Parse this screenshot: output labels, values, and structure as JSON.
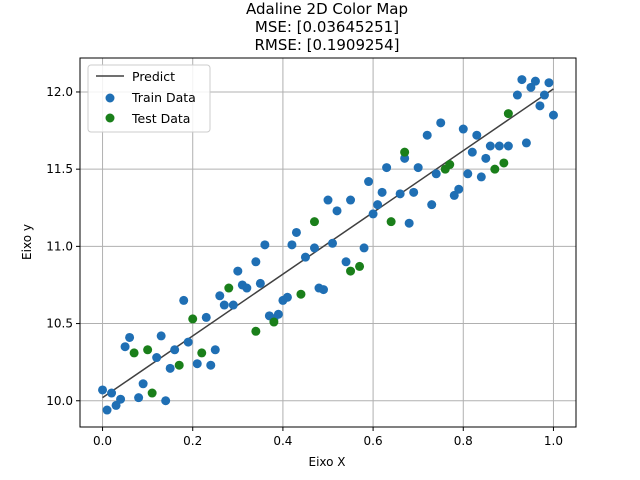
{
  "chart_data": {
    "type": "scatter",
    "title_lines": [
      "Adaline 2D Color Map",
      "MSE: [0.03645251]",
      "RMSE: [0.1909254]"
    ],
    "xlabel": "Eixo X",
    "ylabel": "Eixo y",
    "xlim": [
      -0.05,
      1.05
    ],
    "ylim": [
      9.83,
      12.22
    ],
    "x_ticks": [
      0.0,
      0.2,
      0.4,
      0.6,
      0.8,
      1.0
    ],
    "x_tick_labels": [
      "0.0",
      "0.2",
      "0.4",
      "0.6",
      "0.8",
      "1.0"
    ],
    "y_ticks": [
      10.0,
      10.5,
      11.0,
      11.5,
      12.0
    ],
    "y_tick_labels": [
      "10.0",
      "10.5",
      "11.0",
      "11.5",
      "12.0"
    ],
    "grid": true,
    "legend_position": "top-left",
    "series": [
      {
        "name": "Predict",
        "kind": "line",
        "color": "#404040",
        "points": [
          [
            0.0,
            10.02
          ],
          [
            1.0,
            12.02
          ]
        ]
      },
      {
        "name": "Train Data",
        "kind": "scatter",
        "color": "#1f6fb4",
        "points": [
          [
            0.0,
            10.07
          ],
          [
            0.01,
            9.94
          ],
          [
            0.02,
            10.05
          ],
          [
            0.03,
            9.97
          ],
          [
            0.04,
            10.01
          ],
          [
            0.05,
            10.35
          ],
          [
            0.06,
            10.41
          ],
          [
            0.08,
            10.02
          ],
          [
            0.09,
            10.11
          ],
          [
            0.12,
            10.28
          ],
          [
            0.13,
            10.42
          ],
          [
            0.14,
            10.0
          ],
          [
            0.15,
            10.21
          ],
          [
            0.16,
            10.33
          ],
          [
            0.18,
            10.65
          ],
          [
            0.19,
            10.38
          ],
          [
            0.21,
            10.24
          ],
          [
            0.23,
            10.54
          ],
          [
            0.24,
            10.23
          ],
          [
            0.25,
            10.33
          ],
          [
            0.26,
            10.68
          ],
          [
            0.27,
            10.62
          ],
          [
            0.29,
            10.62
          ],
          [
            0.3,
            10.84
          ],
          [
            0.31,
            10.75
          ],
          [
            0.32,
            10.73
          ],
          [
            0.34,
            10.9
          ],
          [
            0.35,
            10.76
          ],
          [
            0.36,
            11.01
          ],
          [
            0.37,
            10.55
          ],
          [
            0.38,
            10.53
          ],
          [
            0.39,
            10.56
          ],
          [
            0.4,
            10.65
          ],
          [
            0.41,
            10.67
          ],
          [
            0.42,
            11.01
          ],
          [
            0.43,
            11.09
          ],
          [
            0.45,
            10.93
          ],
          [
            0.47,
            10.99
          ],
          [
            0.48,
            10.73
          ],
          [
            0.49,
            10.72
          ],
          [
            0.5,
            11.3
          ],
          [
            0.51,
            11.02
          ],
          [
            0.52,
            11.23
          ],
          [
            0.54,
            10.9
          ],
          [
            0.55,
            11.3
          ],
          [
            0.58,
            10.99
          ],
          [
            0.59,
            11.42
          ],
          [
            0.6,
            11.21
          ],
          [
            0.61,
            11.27
          ],
          [
            0.62,
            11.35
          ],
          [
            0.63,
            11.51
          ],
          [
            0.66,
            11.34
          ],
          [
            0.67,
            11.57
          ],
          [
            0.68,
            11.15
          ],
          [
            0.69,
            11.35
          ],
          [
            0.7,
            11.51
          ],
          [
            0.72,
            11.72
          ],
          [
            0.73,
            11.27
          ],
          [
            0.74,
            11.47
          ],
          [
            0.75,
            11.8
          ],
          [
            0.78,
            11.33
          ],
          [
            0.79,
            11.37
          ],
          [
            0.8,
            11.76
          ],
          [
            0.81,
            11.47
          ],
          [
            0.82,
            11.61
          ],
          [
            0.83,
            11.72
          ],
          [
            0.84,
            11.45
          ],
          [
            0.85,
            11.57
          ],
          [
            0.86,
            11.65
          ],
          [
            0.88,
            11.65
          ],
          [
            0.9,
            11.65
          ],
          [
            0.92,
            11.98
          ],
          [
            0.93,
            12.08
          ],
          [
            0.94,
            11.67
          ],
          [
            0.95,
            12.03
          ],
          [
            0.96,
            12.07
          ],
          [
            0.97,
            11.91
          ],
          [
            0.98,
            11.98
          ],
          [
            0.99,
            12.06
          ],
          [
            1.0,
            11.85
          ]
        ]
      },
      {
        "name": "Test Data",
        "kind": "scatter",
        "color": "#1a7f1a",
        "points": [
          [
            0.07,
            10.31
          ],
          [
            0.1,
            10.33
          ],
          [
            0.11,
            10.05
          ],
          [
            0.17,
            10.23
          ],
          [
            0.2,
            10.53
          ],
          [
            0.22,
            10.31
          ],
          [
            0.28,
            10.73
          ],
          [
            0.34,
            10.45
          ],
          [
            0.38,
            10.51
          ],
          [
            0.44,
            10.69
          ],
          [
            0.47,
            11.16
          ],
          [
            0.55,
            10.84
          ],
          [
            0.57,
            10.87
          ],
          [
            0.64,
            11.16
          ],
          [
            0.67,
            11.61
          ],
          [
            0.76,
            11.5
          ],
          [
            0.77,
            11.53
          ],
          [
            0.87,
            11.5
          ],
          [
            0.89,
            11.54
          ],
          [
            0.9,
            11.86
          ]
        ]
      }
    ]
  }
}
